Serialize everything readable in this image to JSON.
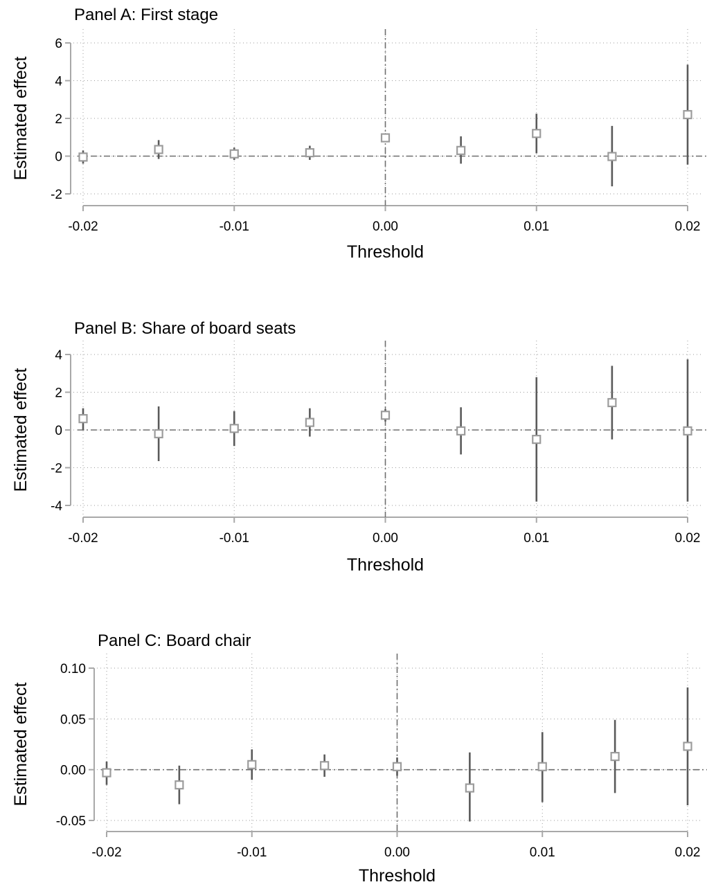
{
  "chart_data": [
    {
      "type": "scatter",
      "title": "Panel A: First stage",
      "xlabel": "Threshold",
      "ylabel": "Estimated effect",
      "xlim": [
        -0.02,
        0.02
      ],
      "ylim": [
        -2,
        6
      ],
      "x_ticks": [
        -0.02,
        -0.01,
        0.0,
        0.01,
        0.02
      ],
      "x_tick_labels": [
        "-0.02",
        "-0.01",
        "0.00",
        "0.01",
        "0.02"
      ],
      "y_ticks": [
        -2,
        0,
        2,
        4,
        6
      ],
      "y_tick_labels": [
        "-2",
        "0",
        "2",
        "4",
        "6"
      ],
      "grid": true,
      "ref_line_y": 0,
      "ref_line_x": 0,
      "points": [
        {
          "x": -0.02,
          "est": -0.05,
          "lo": -0.4,
          "hi": 0.3
        },
        {
          "x": -0.015,
          "est": 0.35,
          "lo": -0.15,
          "hi": 0.85
        },
        {
          "x": -0.01,
          "est": 0.12,
          "lo": -0.2,
          "hi": 0.45
        },
        {
          "x": -0.005,
          "est": 0.18,
          "lo": -0.2,
          "hi": 0.55
        },
        {
          "x": 0.0,
          "est": 0.97,
          "lo": 0.8,
          "hi": 1.15
        },
        {
          "x": 0.005,
          "est": 0.3,
          "lo": -0.4,
          "hi": 1.05
        },
        {
          "x": 0.01,
          "est": 1.2,
          "lo": 0.15,
          "hi": 2.25
        },
        {
          "x": 0.015,
          "est": -0.02,
          "lo": -1.6,
          "hi": 1.6
        },
        {
          "x": 0.02,
          "est": 2.2,
          "lo": -0.45,
          "hi": 4.85
        }
      ]
    },
    {
      "type": "scatter",
      "title": "Panel B: Share of board seats",
      "xlabel": "Threshold",
      "ylabel": "Estimated effect",
      "xlim": [
        -0.02,
        0.02
      ],
      "ylim": [
        -4,
        4
      ],
      "x_ticks": [
        -0.02,
        -0.01,
        0.0,
        0.01,
        0.02
      ],
      "x_tick_labels": [
        "-0.02",
        "-0.01",
        "0.00",
        "0.01",
        "0.02"
      ],
      "y_ticks": [
        -4,
        -2,
        0,
        2,
        4
      ],
      "y_tick_labels": [
        "-4",
        "-2",
        "0",
        "2",
        "4"
      ],
      "grid": true,
      "ref_line_y": 0,
      "ref_line_x": 0,
      "points": [
        {
          "x": -0.02,
          "est": 0.6,
          "lo": 0.0,
          "hi": 1.15
        },
        {
          "x": -0.015,
          "est": -0.2,
          "lo": -1.65,
          "hi": 1.25
        },
        {
          "x": -0.01,
          "est": 0.08,
          "lo": -0.85,
          "hi": 1.0
        },
        {
          "x": -0.005,
          "est": 0.4,
          "lo": -0.35,
          "hi": 1.15
        },
        {
          "x": 0.0,
          "est": 0.78,
          "lo": 0.45,
          "hi": 1.1
        },
        {
          "x": 0.005,
          "est": -0.05,
          "lo": -1.3,
          "hi": 1.2
        },
        {
          "x": 0.01,
          "est": -0.5,
          "lo": -3.8,
          "hi": 2.8
        },
        {
          "x": 0.015,
          "est": 1.45,
          "lo": -0.5,
          "hi": 3.4
        },
        {
          "x": 0.02,
          "est": -0.05,
          "lo": -3.8,
          "hi": 3.75
        }
      ]
    },
    {
      "type": "scatter",
      "title": "Panel C: Board chair",
      "xlabel": "Threshold",
      "ylabel": "Estimated effect",
      "xlim": [
        -0.02,
        0.02
      ],
      "ylim": [
        -0.05,
        0.1
      ],
      "x_ticks": [
        -0.02,
        -0.01,
        0.0,
        0.01,
        0.02
      ],
      "x_tick_labels": [
        "-0.02",
        "-0.01",
        "0.00",
        "0.01",
        "0.02"
      ],
      "y_ticks": [
        -0.05,
        0.0,
        0.05,
        0.1
      ],
      "y_tick_labels": [
        "-0.05",
        "0.00",
        "0.05",
        "0.10"
      ],
      "grid": true,
      "ref_line_y": 0,
      "ref_line_x": 0,
      "points": [
        {
          "x": -0.02,
          "est": -0.003,
          "lo": -0.015,
          "hi": 0.008
        },
        {
          "x": -0.015,
          "est": -0.015,
          "lo": -0.034,
          "hi": 0.004
        },
        {
          "x": -0.01,
          "est": 0.005,
          "lo": -0.01,
          "hi": 0.02
        },
        {
          "x": -0.005,
          "est": 0.004,
          "lo": -0.007,
          "hi": 0.015
        },
        {
          "x": 0.0,
          "est": 0.003,
          "lo": -0.006,
          "hi": 0.012
        },
        {
          "x": 0.005,
          "est": -0.018,
          "lo": -0.051,
          "hi": 0.017
        },
        {
          "x": 0.01,
          "est": 0.003,
          "lo": -0.032,
          "hi": 0.037
        },
        {
          "x": 0.015,
          "est": 0.013,
          "lo": -0.023,
          "hi": 0.049
        },
        {
          "x": 0.02,
          "est": 0.023,
          "lo": -0.035,
          "hi": 0.081
        }
      ]
    }
  ]
}
